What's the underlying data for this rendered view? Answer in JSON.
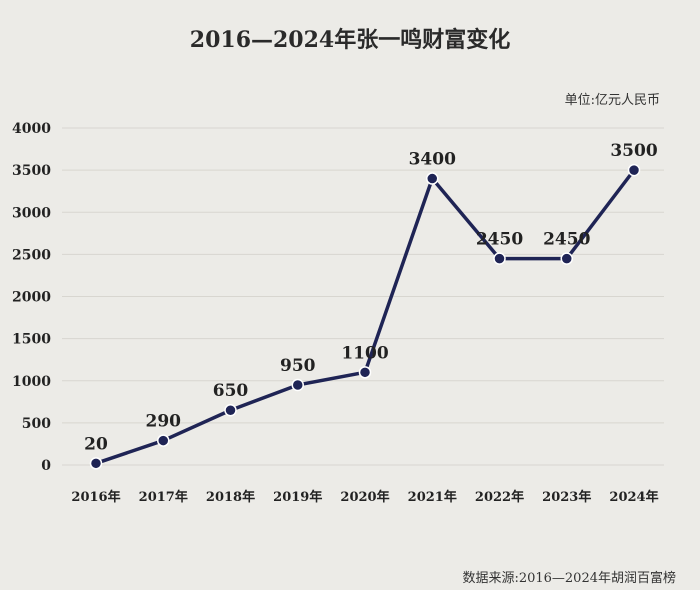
{
  "chart_data": {
    "type": "line",
    "title": "2016—2024年张一鸣财富变化",
    "unit": "单位:亿元人民币",
    "source": "数据来源:2016—2024年胡润百富榜",
    "categories": [
      "2016年",
      "2017年",
      "2018年",
      "2019年",
      "2020年",
      "2021年",
      "2022年",
      "2023年",
      "2024年"
    ],
    "series": [
      {
        "values": [
          20,
          290,
          650,
          950,
          1100,
          3400,
          2450,
          2450,
          3500
        ]
      }
    ],
    "data_labels": [
      "20",
      "290",
      "650",
      "950",
      "1100",
      "3400",
      "2450",
      "2450",
      "3500"
    ],
    "yticks": [
      "0",
      "500",
      "1000",
      "1500",
      "2000",
      "2500",
      "3000",
      "3500",
      "4000"
    ],
    "ylim": [
      0,
      4000
    ],
    "grid": true,
    "colors": {
      "line": "#1f2455",
      "background": "#ecebe7"
    }
  }
}
